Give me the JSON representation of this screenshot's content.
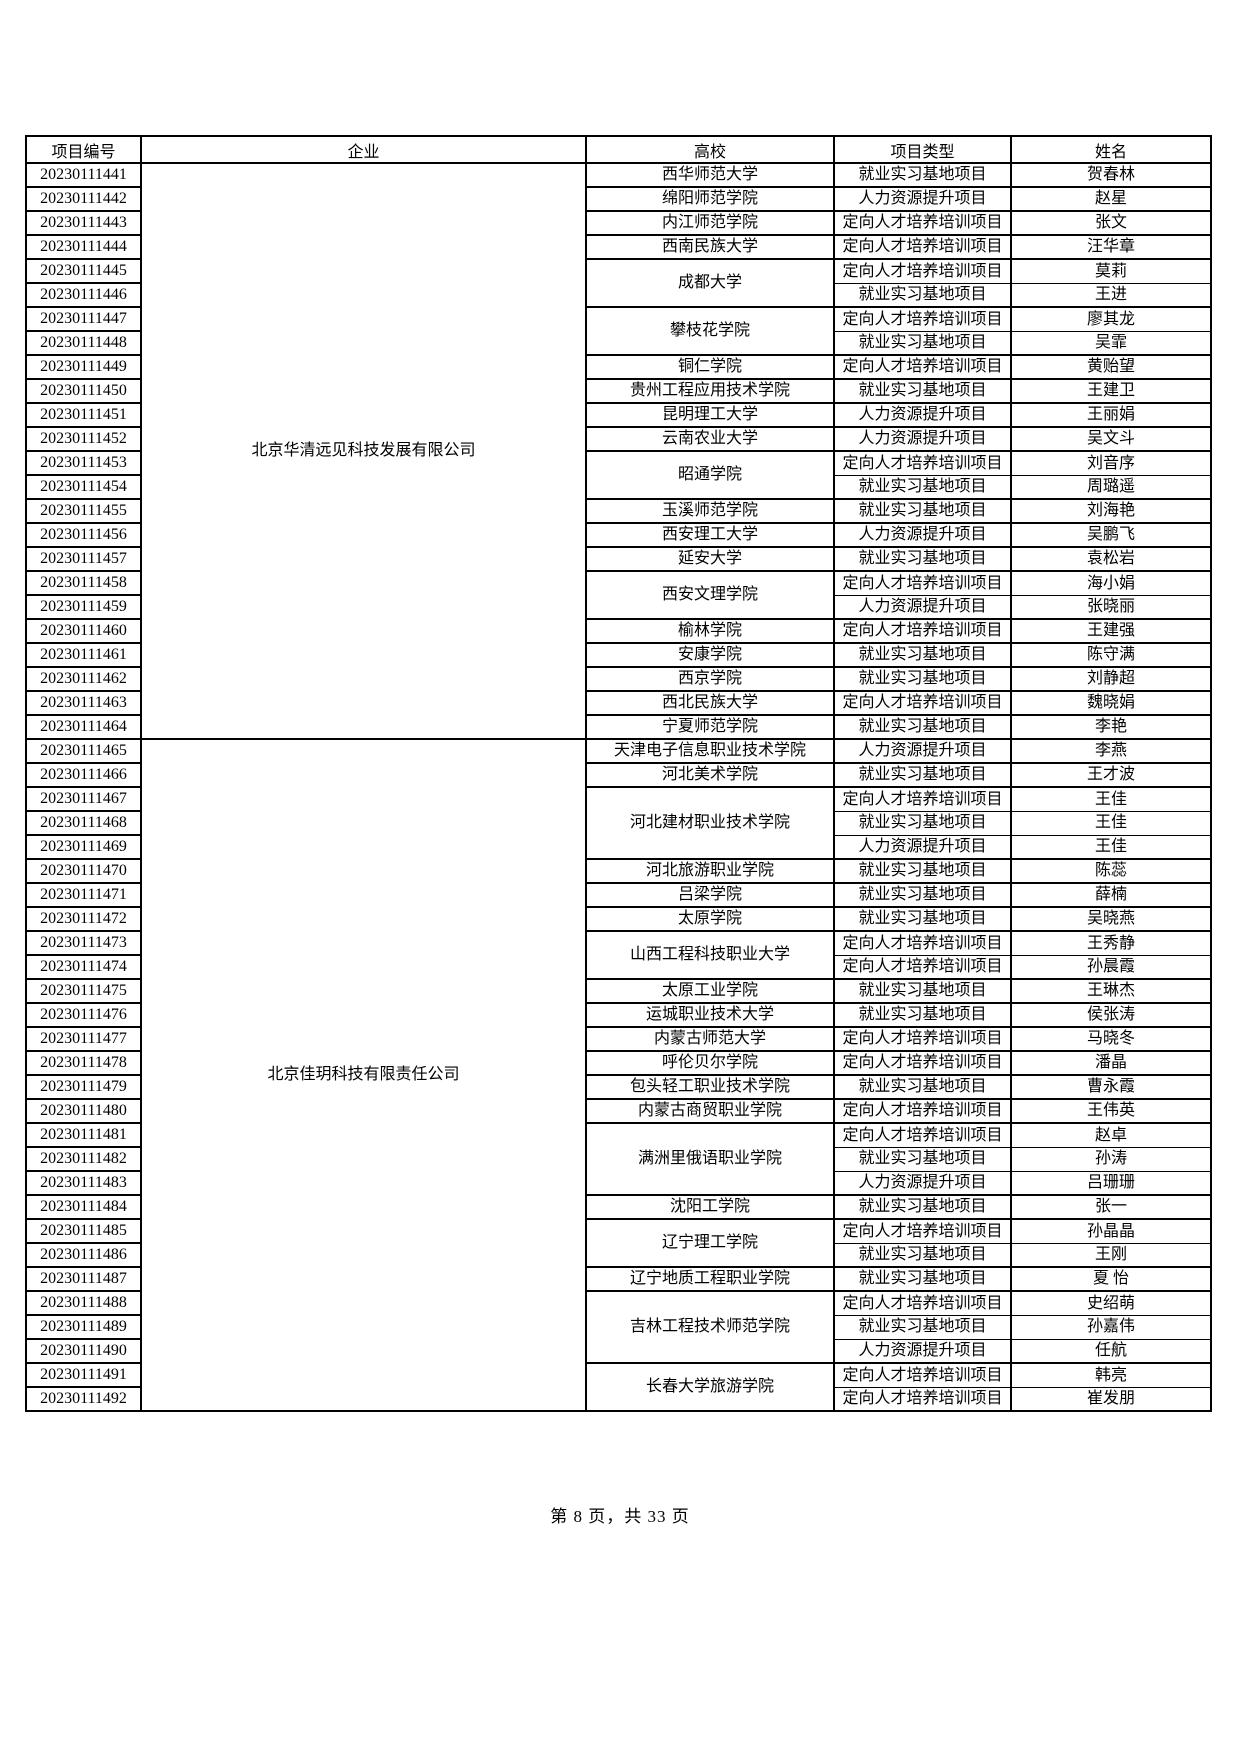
{
  "page": {
    "footer": "第 8 页，共 33 页"
  },
  "colors": {
    "background": "#ffffff",
    "border": "#000000",
    "text": "#000000"
  },
  "table": {
    "columns": [
      "项目编号",
      "企业",
      "高校",
      "项目类型",
      "姓名"
    ],
    "companies": [
      {
        "name": "北京华清远见科技发展有限公司",
        "groups": [
          {
            "school": "西华师范大学",
            "entries": [
              {
                "id": "20230111441",
                "type": "就业实习基地项目",
                "person": "贺春林"
              }
            ]
          },
          {
            "school": "绵阳师范学院",
            "entries": [
              {
                "id": "20230111442",
                "type": "人力资源提升项目",
                "person": "赵星"
              }
            ]
          },
          {
            "school": "内江师范学院",
            "entries": [
              {
                "id": "20230111443",
                "type": "定向人才培养培训项目",
                "person": "张文"
              }
            ]
          },
          {
            "school": "西南民族大学",
            "entries": [
              {
                "id": "20230111444",
                "type": "定向人才培养培训项目",
                "person": "汪华章"
              }
            ]
          },
          {
            "school": "成都大学",
            "entries": [
              {
                "id": "20230111445",
                "type": "定向人才培养培训项目",
                "person": "莫莉"
              },
              {
                "id": "20230111446",
                "type": "就业实习基地项目",
                "person": "王进"
              }
            ]
          },
          {
            "school": "攀枝花学院",
            "entries": [
              {
                "id": "20230111447",
                "type": "定向人才培养培训项目",
                "person": "廖其龙"
              },
              {
                "id": "20230111448",
                "type": "就业实习基地项目",
                "person": "吴霏"
              }
            ]
          },
          {
            "school": "铜仁学院",
            "entries": [
              {
                "id": "20230111449",
                "type": "定向人才培养培训项目",
                "person": "黄贻望"
              }
            ]
          },
          {
            "school": "贵州工程应用技术学院",
            "entries": [
              {
                "id": "20230111450",
                "type": "就业实习基地项目",
                "person": "王建卫"
              }
            ]
          },
          {
            "school": "昆明理工大学",
            "entries": [
              {
                "id": "20230111451",
                "type": "人力资源提升项目",
                "person": "王丽娟"
              }
            ]
          },
          {
            "school": "云南农业大学",
            "entries": [
              {
                "id": "20230111452",
                "type": "人力资源提升项目",
                "person": "吴文斗"
              }
            ]
          },
          {
            "school": "昭通学院",
            "entries": [
              {
                "id": "20230111453",
                "type": "定向人才培养培训项目",
                "person": "刘音序"
              },
              {
                "id": "20230111454",
                "type": "就业实习基地项目",
                "person": "周璐遥"
              }
            ]
          },
          {
            "school": "玉溪师范学院",
            "entries": [
              {
                "id": "20230111455",
                "type": "就业实习基地项目",
                "person": "刘海艳"
              }
            ]
          },
          {
            "school": "西安理工大学",
            "entries": [
              {
                "id": "20230111456",
                "type": "人力资源提升项目",
                "person": "吴鹏飞"
              }
            ]
          },
          {
            "school": "延安大学",
            "entries": [
              {
                "id": "20230111457",
                "type": "就业实习基地项目",
                "person": "袁松岩"
              }
            ]
          },
          {
            "school": "西安文理学院",
            "entries": [
              {
                "id": "20230111458",
                "type": "定向人才培养培训项目",
                "person": "海小娟"
              },
              {
                "id": "20230111459",
                "type": "人力资源提升项目",
                "person": "张晓丽"
              }
            ]
          },
          {
            "school": "榆林学院",
            "entries": [
              {
                "id": "20230111460",
                "type": "定向人才培养培训项目",
                "person": "王建强"
              }
            ]
          },
          {
            "school": "安康学院",
            "entries": [
              {
                "id": "20230111461",
                "type": "就业实习基地项目",
                "person": "陈守满"
              }
            ]
          },
          {
            "school": "西京学院",
            "entries": [
              {
                "id": "20230111462",
                "type": "就业实习基地项目",
                "person": "刘静超"
              }
            ]
          },
          {
            "school": "西北民族大学",
            "entries": [
              {
                "id": "20230111463",
                "type": "定向人才培养培训项目",
                "person": "魏晓娟"
              }
            ]
          },
          {
            "school": "宁夏师范学院",
            "entries": [
              {
                "id": "20230111464",
                "type": "就业实习基地项目",
                "person": "李艳"
              }
            ]
          }
        ]
      },
      {
        "name": "北京佳玥科技有限责任公司",
        "groups": [
          {
            "school": "天津电子信息职业技术学院",
            "entries": [
              {
                "id": "20230111465",
                "type": "人力资源提升项目",
                "person": "李燕"
              }
            ]
          },
          {
            "school": "河北美术学院",
            "entries": [
              {
                "id": "20230111466",
                "type": "就业实习基地项目",
                "person": "王才波"
              }
            ]
          },
          {
            "school": "河北建材职业技术学院",
            "entries": [
              {
                "id": "20230111467",
                "type": "定向人才培养培训项目",
                "person": "王佳"
              },
              {
                "id": "20230111468",
                "type": "就业实习基地项目",
                "person": "王佳"
              },
              {
                "id": "20230111469",
                "type": "人力资源提升项目",
                "person": "王佳"
              }
            ]
          },
          {
            "school": "河北旅游职业学院",
            "entries": [
              {
                "id": "20230111470",
                "type": "就业实习基地项目",
                "person": "陈蕊"
              }
            ]
          },
          {
            "school": "吕梁学院",
            "entries": [
              {
                "id": "20230111471",
                "type": "就业实习基地项目",
                "person": "薛楠"
              }
            ]
          },
          {
            "school": "太原学院",
            "entries": [
              {
                "id": "20230111472",
                "type": "就业实习基地项目",
                "person": "吴晓燕"
              }
            ]
          },
          {
            "school": "山西工程科技职业大学",
            "entries": [
              {
                "id": "20230111473",
                "type": "定向人才培养培训项目",
                "person": "王秀静"
              },
              {
                "id": "20230111474",
                "type": "定向人才培养培训项目",
                "person": "孙晨霞"
              }
            ]
          },
          {
            "school": "太原工业学院",
            "entries": [
              {
                "id": "20230111475",
                "type": "就业实习基地项目",
                "person": "王琳杰"
              }
            ]
          },
          {
            "school": "运城职业技术大学",
            "entries": [
              {
                "id": "20230111476",
                "type": "就业实习基地项目",
                "person": "侯张涛"
              }
            ]
          },
          {
            "school": "内蒙古师范大学",
            "entries": [
              {
                "id": "20230111477",
                "type": "定向人才培养培训项目",
                "person": "马晓冬"
              }
            ]
          },
          {
            "school": "呼伦贝尔学院",
            "entries": [
              {
                "id": "20230111478",
                "type": "定向人才培养培训项目",
                "person": "潘晶"
              }
            ]
          },
          {
            "school": "包头轻工职业技术学院",
            "entries": [
              {
                "id": "20230111479",
                "type": "就业实习基地项目",
                "person": "曹永霞"
              }
            ]
          },
          {
            "school": "内蒙古商贸职业学院",
            "entries": [
              {
                "id": "20230111480",
                "type": "定向人才培养培训项目",
                "person": "王伟英"
              }
            ]
          },
          {
            "school": "满洲里俄语职业学院",
            "entries": [
              {
                "id": "20230111481",
                "type": "定向人才培养培训项目",
                "person": "赵卓"
              },
              {
                "id": "20230111482",
                "type": "就业实习基地项目",
                "person": "孙涛"
              },
              {
                "id": "20230111483",
                "type": "人力资源提升项目",
                "person": "吕珊珊"
              }
            ]
          },
          {
            "school": "沈阳工学院",
            "entries": [
              {
                "id": "20230111484",
                "type": "就业实习基地项目",
                "person": "张一"
              }
            ]
          },
          {
            "school": "辽宁理工学院",
            "entries": [
              {
                "id": "20230111485",
                "type": "定向人才培养培训项目",
                "person": "孙晶晶"
              },
              {
                "id": "20230111486",
                "type": "就业实习基地项目",
                "person": "王刚"
              }
            ]
          },
          {
            "school": "辽宁地质工程职业学院",
            "entries": [
              {
                "id": "20230111487",
                "type": "就业实习基地项目",
                "person": "夏 怡"
              }
            ]
          },
          {
            "school": "吉林工程技术师范学院",
            "entries": [
              {
                "id": "20230111488",
                "type": "定向人才培养培训项目",
                "person": "史绍萌"
              },
              {
                "id": "20230111489",
                "type": "就业实习基地项目",
                "person": "孙嘉伟"
              },
              {
                "id": "20230111490",
                "type": "人力资源提升项目",
                "person": "任航"
              }
            ]
          },
          {
            "school": "长春大学旅游学院",
            "entries": [
              {
                "id": "20230111491",
                "type": "定向人才培养培训项目",
                "person": "韩亮"
              },
              {
                "id": "20230111492",
                "type": "定向人才培养培训项目",
                "person": "崔发朋"
              }
            ]
          }
        ]
      }
    ]
  }
}
